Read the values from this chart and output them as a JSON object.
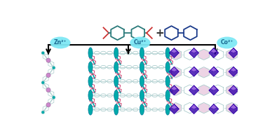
{
  "background_color": "#ffffff",
  "metal_labels": [
    "Zn²⁺",
    "Cu²⁺",
    "Co²⁺"
  ],
  "metal_circle_color": "#7fe8f5",
  "metal_text_color": "#1a6890",
  "linker1_color": "#2a7a7a",
  "carboxyl_color": "#cc3333",
  "biphenyl_color": "#1a3a8a",
  "chain_color": "#aacccc",
  "node_pink": "#cc88cc",
  "node_teal": "#00aaaa",
  "cu_rod_color": "#00aaaa",
  "cu_ring_color": "#cc3366",
  "cu_oval_color": "#aacccc",
  "co_ring_color": "#aacccc",
  "co_poly_dark": "#3300aa",
  "co_poly_mid": "#6633cc",
  "co_poly_light": "#9966dd",
  "co_pink_bg": "#ddaacc",
  "fig_width": 3.78,
  "fig_height": 1.87
}
